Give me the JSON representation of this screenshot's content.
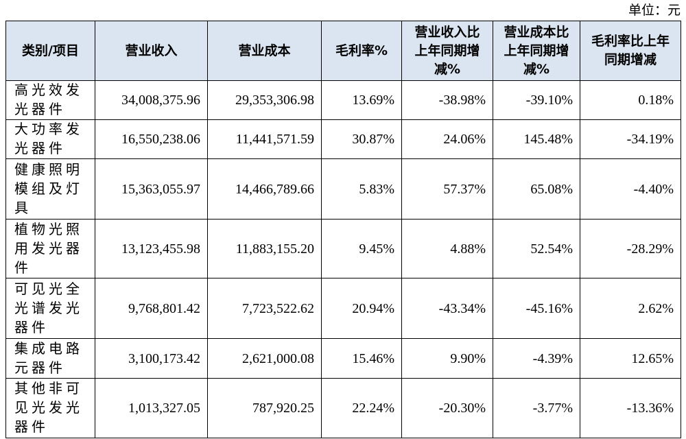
{
  "unit": "单位：元",
  "table": {
    "headers": [
      "类别/项目",
      "营业收入",
      "营业成本",
      "毛利率%",
      "营业收入比上年同期增减%",
      "营业成本比上年同期增减%",
      "毛利率比上年同期增减"
    ],
    "rows": [
      [
        "高光效发光器件",
        "34,008,375.96",
        "29,353,306.98",
        "13.69%",
        "-38.98%",
        "-39.10%",
        "0.18%"
      ],
      [
        "大功率发光器件",
        "16,550,238.06",
        "11,441,571.59",
        "30.87%",
        "24.06%",
        "145.48%",
        "-34.19%"
      ],
      [
        "健康照明模组及灯具",
        "15,363,055.97",
        "14,466,789.66",
        "5.83%",
        "57.37%",
        "65.08%",
        "-4.40%"
      ],
      [
        "植物光照用发光器件",
        "13,123,455.98",
        "11,883,155.20",
        "9.45%",
        "4.88%",
        "52.54%",
        "-28.29%"
      ],
      [
        "可见光全光谱发光器件",
        "9,768,801.42",
        "7,723,522.62",
        "20.94%",
        "-43.34%",
        "-45.16%",
        "2.62%"
      ],
      [
        "集成电路元器件",
        "3,100,173.42",
        "2,621,000.08",
        "15.46%",
        "9.90%",
        "-4.39%",
        "12.65%"
      ],
      [
        "其他非可见光发光器件",
        "1,013,327.05",
        "787,920.25",
        "22.24%",
        "-20.30%",
        "-3.77%",
        "-13.36%"
      ]
    ]
  }
}
